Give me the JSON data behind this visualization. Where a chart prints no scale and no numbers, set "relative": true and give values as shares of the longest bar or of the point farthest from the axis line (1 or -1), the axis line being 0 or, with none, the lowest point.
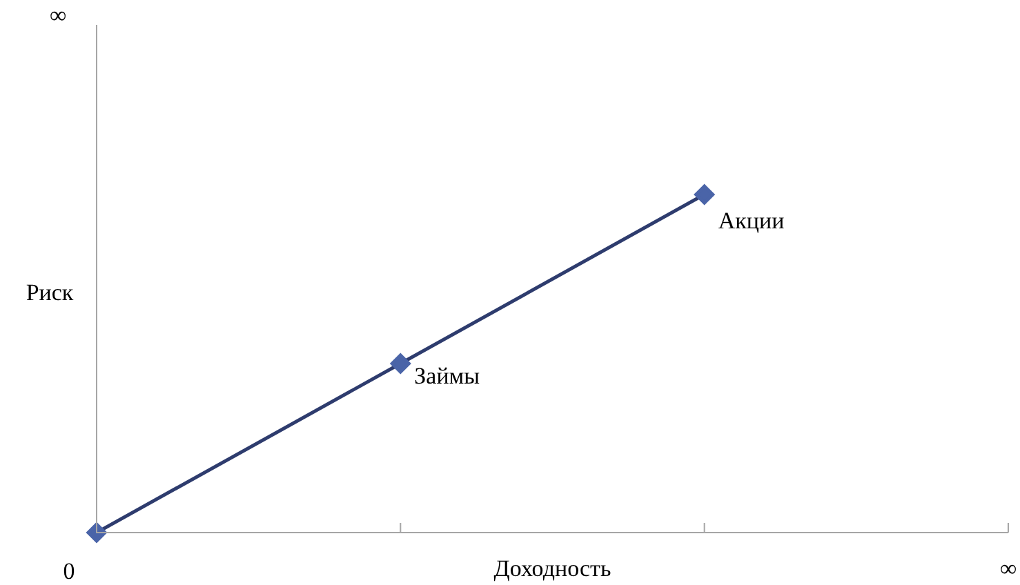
{
  "chart_data": {
    "type": "line",
    "xlabel": "Доходность",
    "ylabel": "Риск",
    "categories": [
      null,
      null,
      null,
      null
    ],
    "series": [
      {
        "color": "#2e3c6e",
        "values": [
          0,
          0.5,
          1,
          null
        ]
      }
    ],
    "relative": true,
    "marker": "diamond",
    "line_style": "solid",
    "legend": false,
    "annotations": [
      "0",
      "∞",
      "∞",
      "Займы",
      "Акции"
    ]
  }
}
